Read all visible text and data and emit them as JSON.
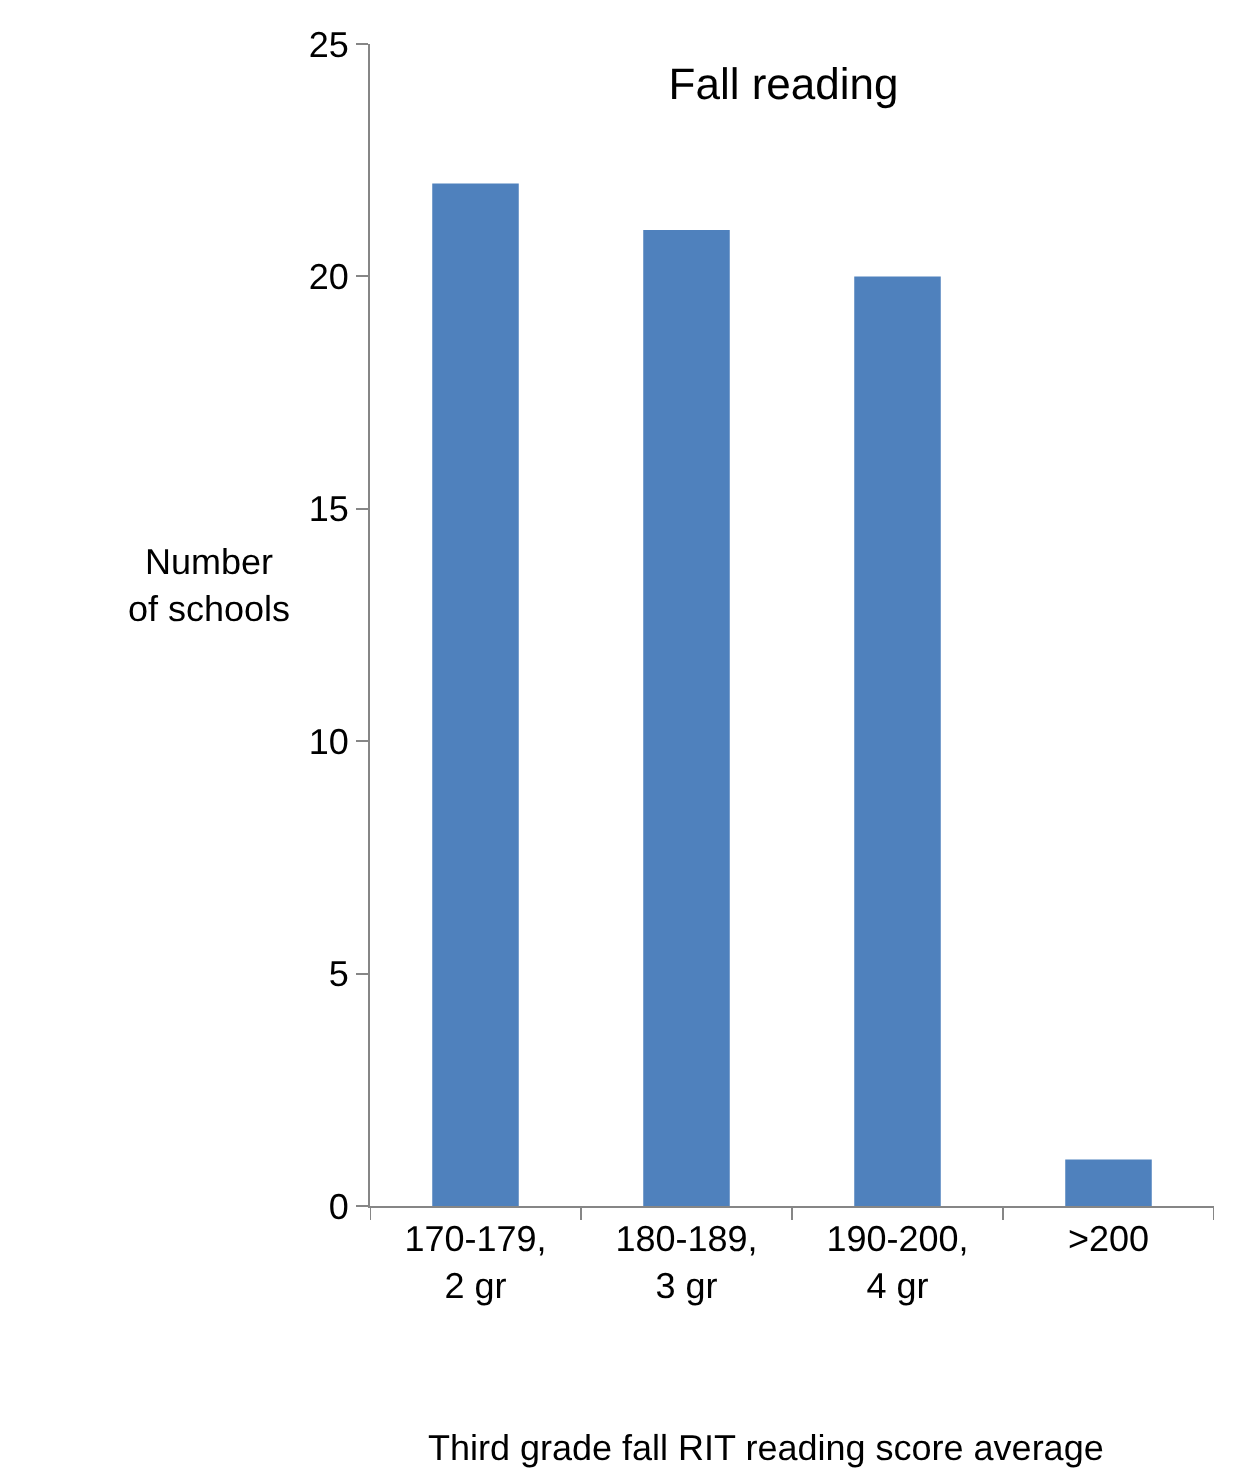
{
  "chart_data": {
    "type": "bar",
    "title": "Fall reading",
    "xlabel": "Third grade fall RIT reading score average",
    "ylabel": "Number\nof schools",
    "categories": [
      "170-179,\n2 gr",
      "180-189,\n3 gr",
      "190-200,\n4 gr",
      ">200"
    ],
    "values": [
      22,
      21,
      20,
      1
    ],
    "color": "#4f81bd",
    "ylim": [
      0,
      25
    ],
    "yticks": [
      0,
      5,
      10,
      15,
      20,
      25
    ]
  }
}
